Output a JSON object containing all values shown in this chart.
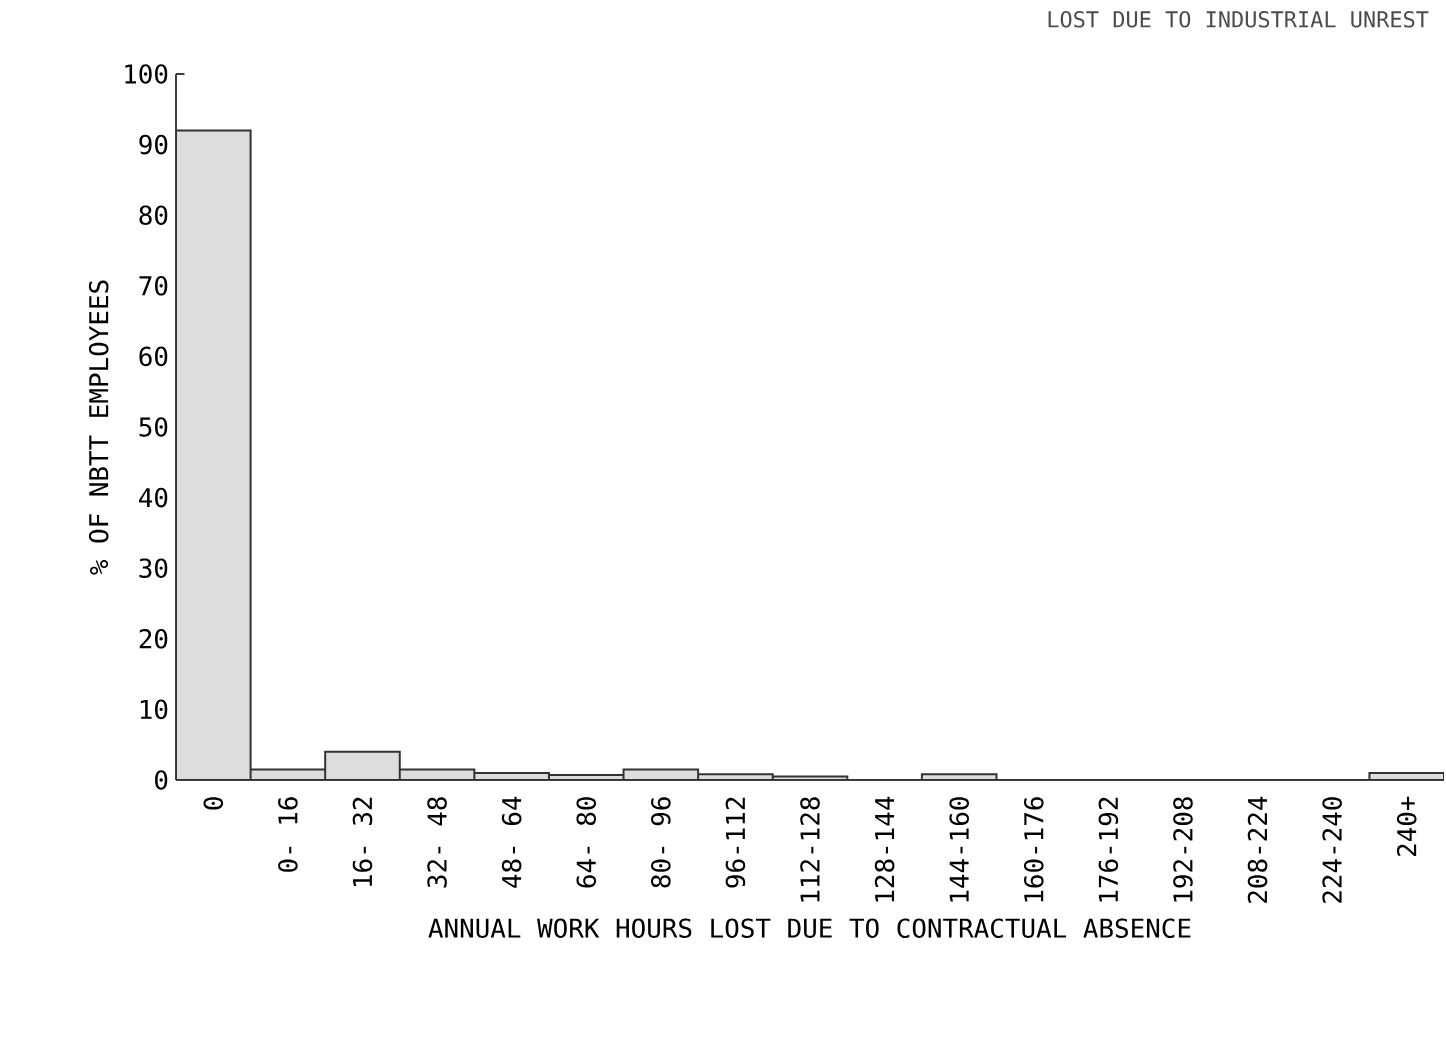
{
  "chart_data": {
    "type": "bar",
    "title": "LOST DUE TO INDUSTRIAL UNREST",
    "xlabel": "ANNUAL WORK HOURS LOST DUE TO CONTRACTUAL ABSENCE",
    "ylabel": "% OF NBTT EMPLOYEES",
    "categories": [
      "0",
      "0- 16",
      "16- 32",
      "32- 48",
      "48- 64",
      "64- 80",
      "80- 96",
      "96-112",
      "112-128",
      "128-144",
      "144-160",
      "160-176",
      "176-192",
      "192-208",
      "208-224",
      "224-240",
      "240+"
    ],
    "values": [
      92,
      1.5,
      4,
      1.5,
      1,
      0.7,
      1.5,
      0.8,
      0.5,
      0,
      0.8,
      0,
      0,
      0,
      0,
      0,
      1
    ],
    "color": "#dddddd",
    "ylim": [
      0,
      100
    ],
    "yticks": [
      0,
      10,
      20,
      30,
      40,
      50,
      60,
      70,
      80,
      90,
      100
    ]
  }
}
